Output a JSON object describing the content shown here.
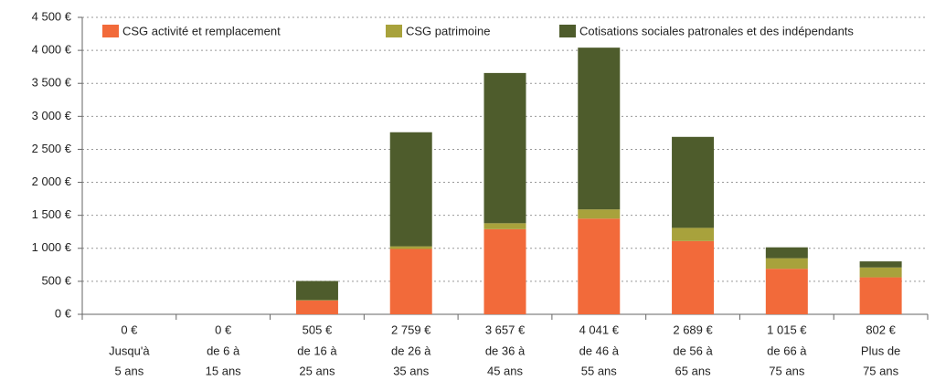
{
  "chart_data": {
    "type": "stacked_bar",
    "categories": [
      [
        "Jusqu'à",
        "5 ans"
      ],
      [
        "de 6 à",
        "15 ans"
      ],
      [
        "de 16 à",
        "25 ans"
      ],
      [
        "de 26 à",
        "35 ans"
      ],
      [
        "de 36 à",
        "45 ans"
      ],
      [
        "de 46 à",
        "55 ans"
      ],
      [
        "de 56 à",
        "65 ans"
      ],
      [
        "de 66 à",
        "75 ans"
      ],
      [
        "Plus de",
        "75 ans"
      ]
    ],
    "series": [
      {
        "name": "CSG activité et remplacement",
        "color": "#f26a3a",
        "values": [
          0,
          0,
          210,
          990,
          1290,
          1450,
          1110,
          690,
          560
        ]
      },
      {
        "name": "CSG patrimoine",
        "color": "#a8a23c",
        "values": [
          0,
          0,
          5,
          40,
          90,
          140,
          200,
          160,
          150
        ]
      },
      {
        "name": "Cotisations sociales patronales et des indépendants",
        "color": "#4e5c2c",
        "values": [
          0,
          0,
          290,
          1729,
          2277,
          2451,
          1379,
          165,
          92
        ]
      }
    ],
    "totals": [
      0,
      0,
      505,
      2759,
      3657,
      4041,
      2689,
      1015,
      802
    ],
    "total_labels": [
      "0 €",
      "0 €",
      "505 €",
      "2 759 €",
      "3 657 €",
      "4 041 €",
      "2 689 €",
      "1 015 €",
      "802 €"
    ],
    "ylim": [
      0,
      4500
    ],
    "yticks": [
      {
        "value": 0,
        "label": "0 €"
      },
      {
        "value": 500,
        "label": "500 €"
      },
      {
        "value": 1000,
        "label": "1 000 €"
      },
      {
        "value": 1500,
        "label": "1 500 €"
      },
      {
        "value": 2000,
        "label": "2 000 €"
      },
      {
        "value": 2500,
        "label": "2 500 €"
      },
      {
        "value": 3000,
        "label": "3 000 €"
      },
      {
        "value": 3500,
        "label": "3 500 €"
      },
      {
        "value": 4000,
        "label": "4 000 €"
      },
      {
        "value": 4500,
        "label": "4 500 €"
      }
    ],
    "grid": true,
    "legend": "top"
  }
}
